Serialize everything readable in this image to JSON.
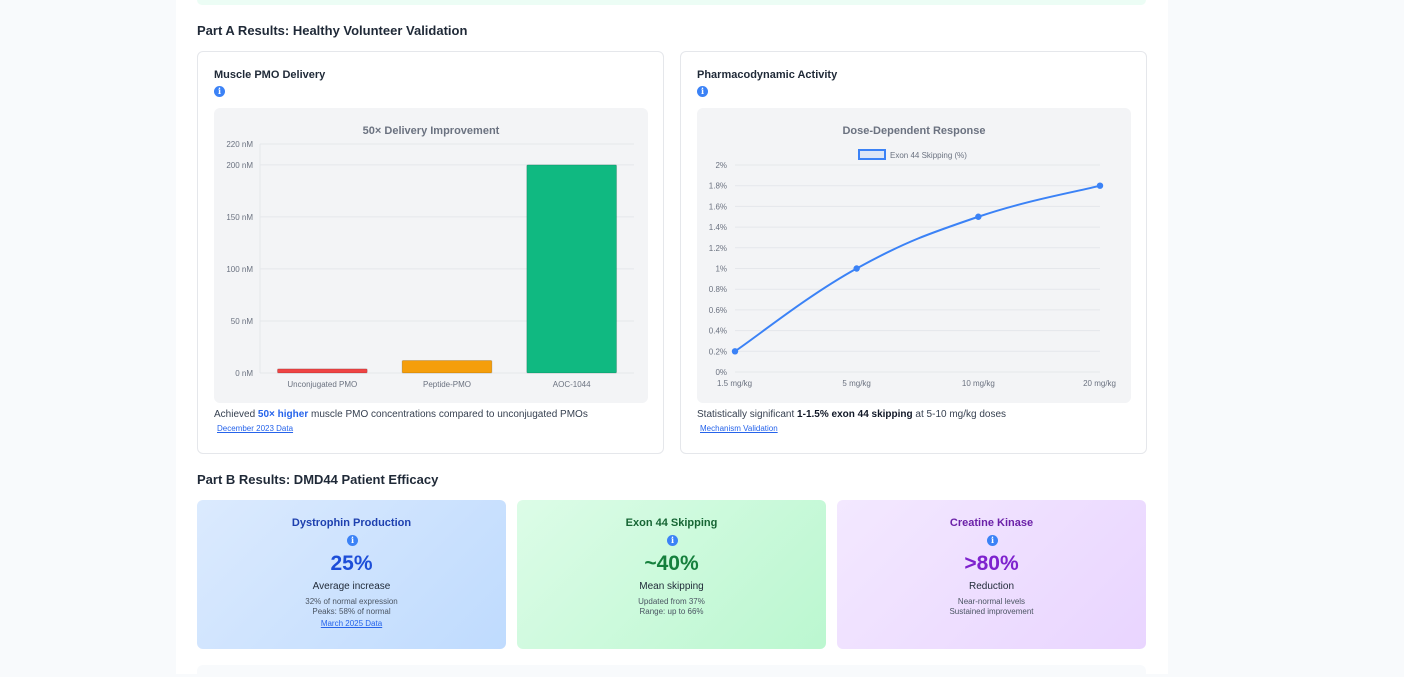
{
  "part_a": {
    "title": "Part A Results: Healthy Volunteer Validation",
    "delivery_card": {
      "title": "Muscle PMO Delivery",
      "caption_pre": "Achieved ",
      "caption_bold": "50× higher",
      "caption_post": " muscle PMO concentrations compared to unconjugated PMOs",
      "link": "December 2023 Data"
    },
    "pd_card": {
      "title": "Pharmacodynamic Activity",
      "caption_pre": "Statistically significant ",
      "caption_bold": "1-1.5% exon 44 skipping",
      "caption_post": " at 5-10 mg/kg doses",
      "link": "Mechanism Validation"
    }
  },
  "part_b": {
    "title": "Part B Results: DMD44 Patient Efficacy",
    "metrics": [
      {
        "title": "Dystrophin Production",
        "value": "25%",
        "label": "Average increase",
        "sub1": "32% of normal expression",
        "sub2": "Peaks: 58% of normal",
        "link": "March 2025 Data",
        "accent": "#1e40af",
        "value_color": "#1d4ed8"
      },
      {
        "title": "Exon 44 Skipping",
        "value": "~40%",
        "label": "Mean skipping",
        "sub1": "Updated from 37%",
        "sub2": "Range: up to 66%",
        "accent": "#166534",
        "value_color": "#15803d"
      },
      {
        "title": "Creatine Kinase",
        "value": ">80%",
        "label": "Reduction",
        "sub1": "Near-normal levels",
        "sub2": "Sustained improvement",
        "accent": "#6b21a8",
        "value_color": "#7e22ce"
      }
    ]
  },
  "icons": {
    "info": "info-icon",
    "info_glyph": "i"
  },
  "chart_data": [
    {
      "type": "bar",
      "title": "50× Delivery Improvement",
      "categories": [
        "Unconjugated PMO",
        "Peptide-PMO",
        "AOC-1044"
      ],
      "values": [
        4,
        12,
        200
      ],
      "colors": [
        "#ef4444",
        "#f59e0b",
        "#10b981"
      ],
      "ylim": [
        0,
        220
      ],
      "yticks": [
        0,
        50,
        100,
        150,
        200,
        220
      ],
      "ytick_labels": [
        "0 nM",
        "50 nM",
        "100 nM",
        "150 nM",
        "200 nM",
        "220 nM"
      ],
      "xlabel": "",
      "ylabel": ""
    },
    {
      "type": "line",
      "title": "Dose-Dependent Response",
      "legend": "Exon 44 Skipping (%)",
      "legend_position": "top-center",
      "categories": [
        "1.5 mg/kg",
        "5 mg/kg",
        "10 mg/kg",
        "20 mg/kg"
      ],
      "series": [
        {
          "name": "Exon 44 Skipping (%)",
          "values": [
            0.2,
            1.0,
            1.5,
            1.8
          ],
          "color": "#3b82f6"
        }
      ],
      "ylim": [
        0,
        2
      ],
      "yticks": [
        0,
        0.2,
        0.4,
        0.6,
        0.8,
        1,
        1.2,
        1.4,
        1.6,
        1.8,
        2
      ],
      "ytick_labels": [
        "0%",
        "0.2%",
        "0.4%",
        "0.6%",
        "0.8%",
        "1%",
        "1.2%",
        "1.4%",
        "1.6%",
        "1.8%",
        "2%"
      ],
      "xlabel": "",
      "ylabel": ""
    }
  ]
}
